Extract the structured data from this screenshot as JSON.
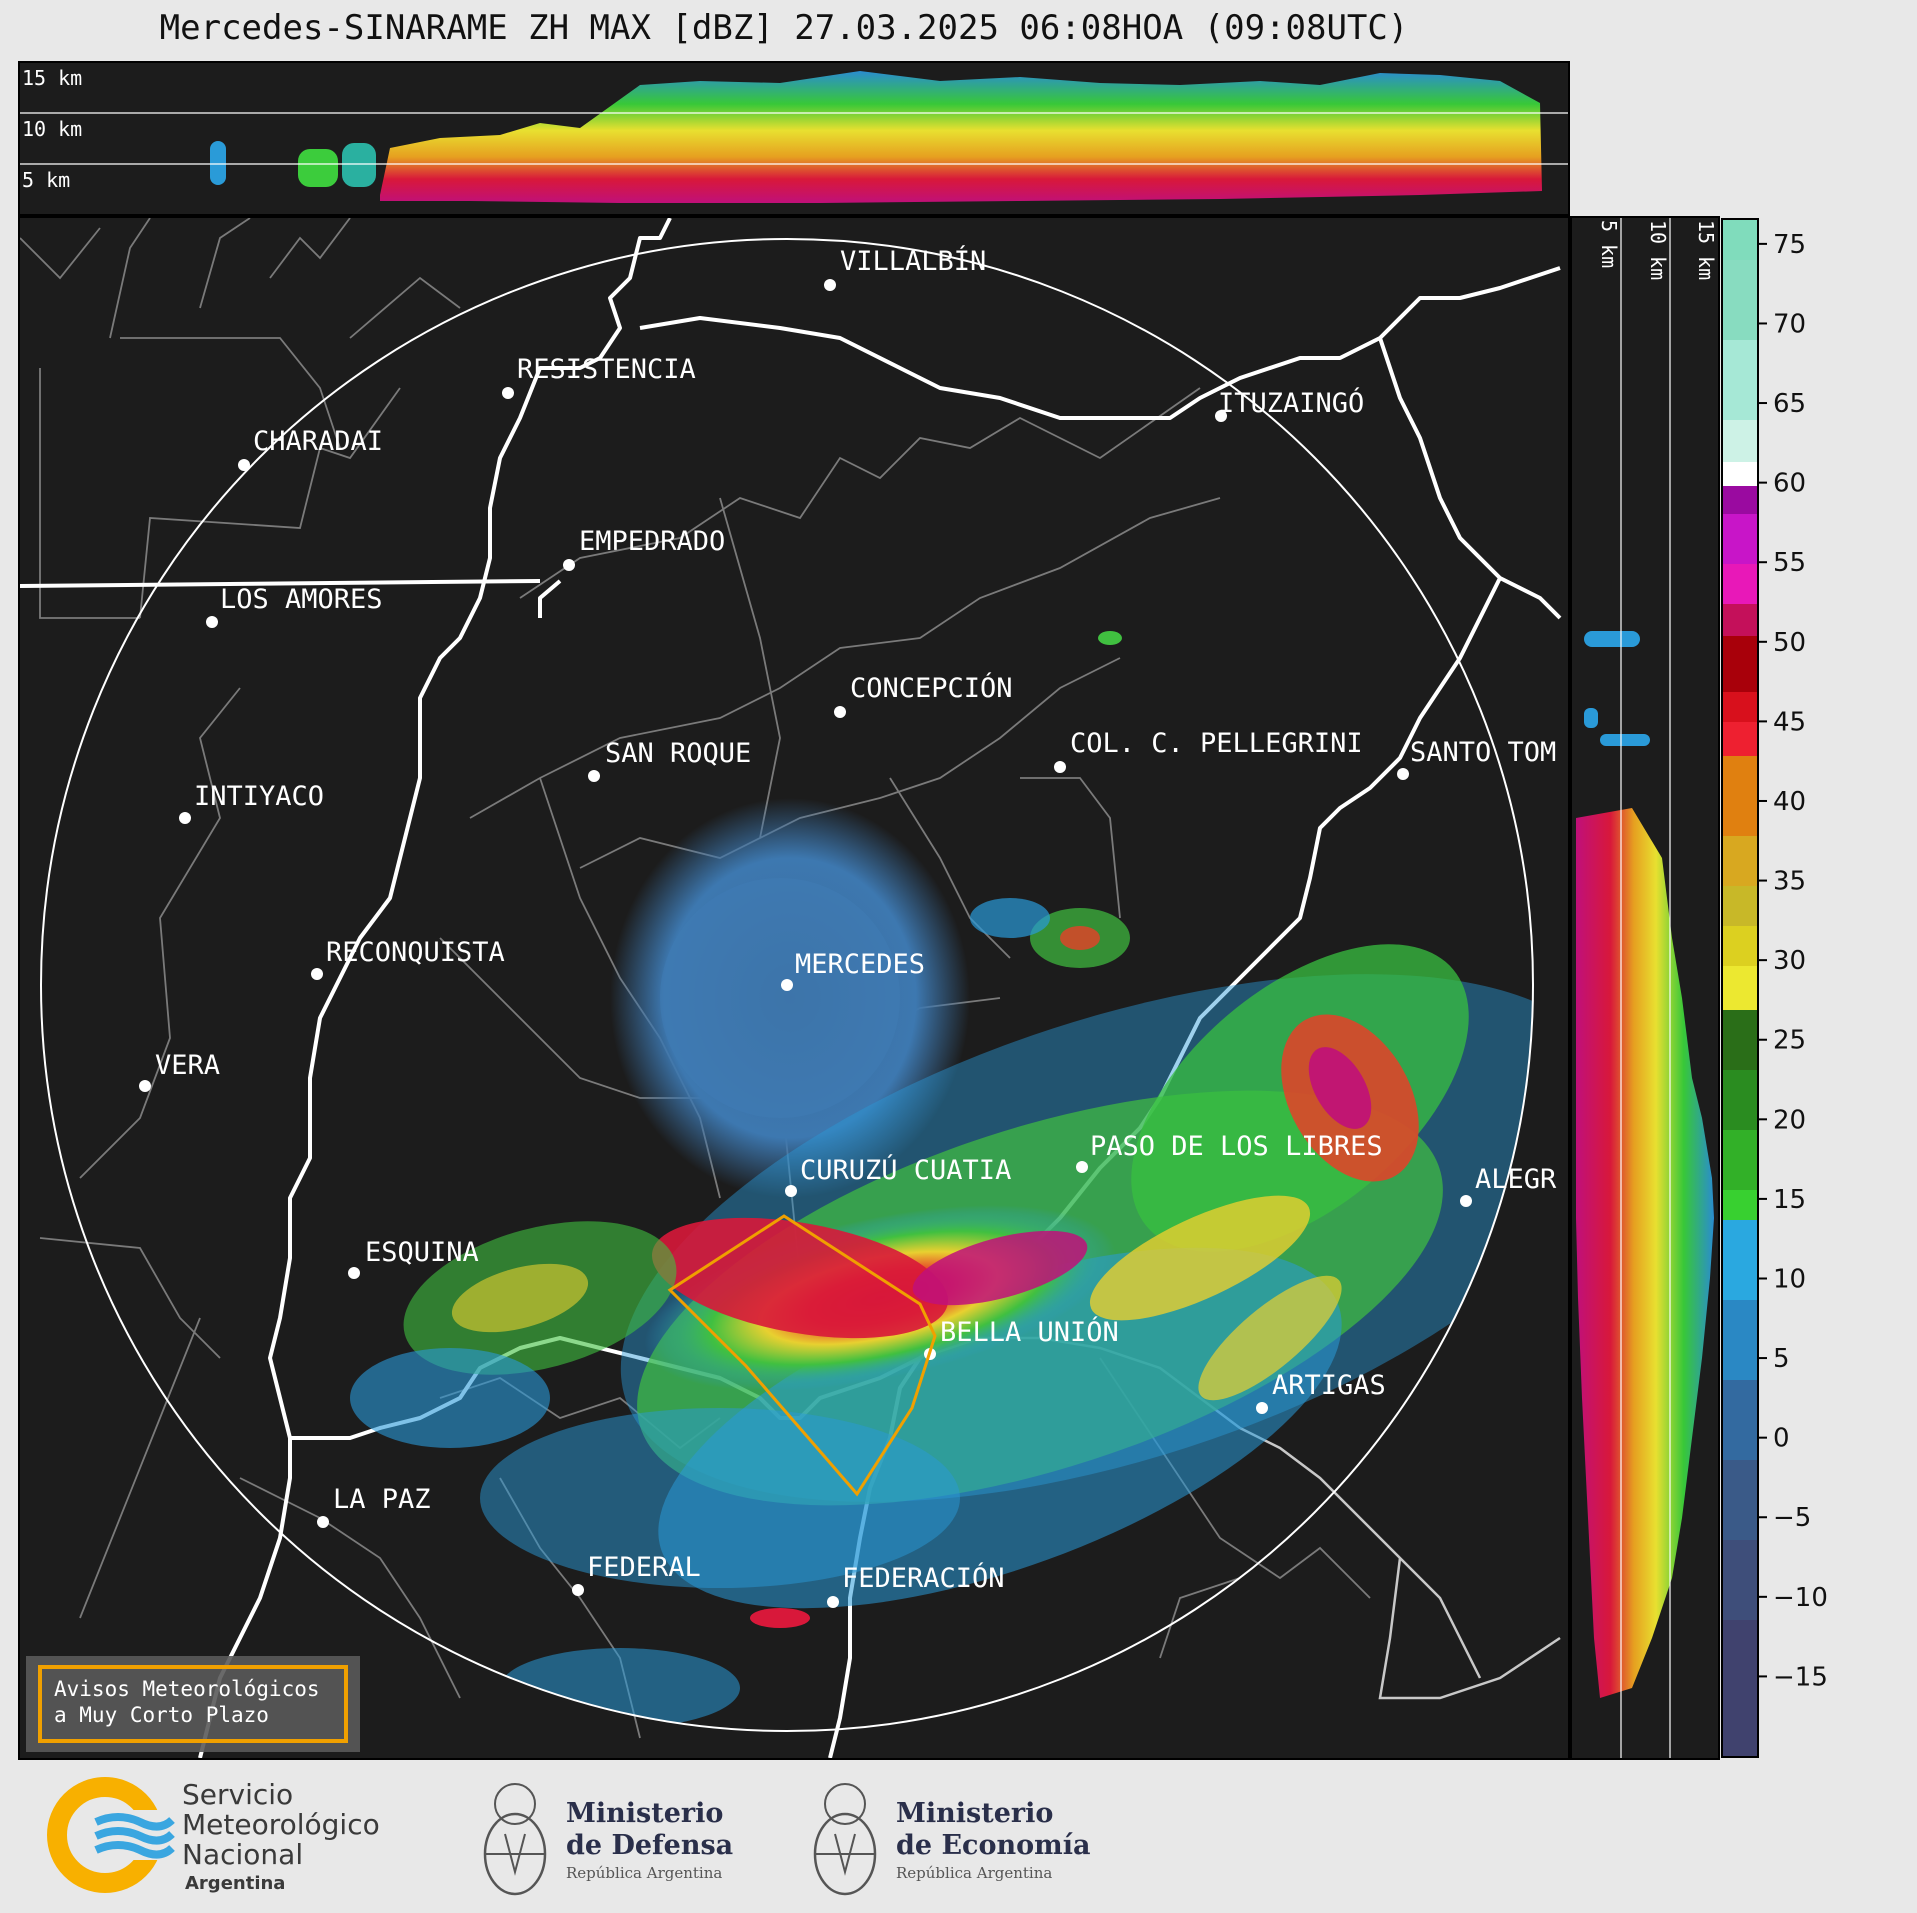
{
  "title": "Mercedes-SINARAME ZH MAX [dBZ] 27.03.2025 06:08HOA (09:08UTC)",
  "top_panel": {
    "height_labels": [
      "15 km",
      "10 km",
      "5 km"
    ]
  },
  "side_panel": {
    "height_labels": [
      "5 km",
      "10 km",
      "15 km"
    ]
  },
  "cities": [
    {
      "name": "VILLALBÍN"
    },
    {
      "name": "RESISTENCIA"
    },
    {
      "name": "CHARADAI"
    },
    {
      "name": "ITUZAINGÓ"
    },
    {
      "name": "EMPEDRADO"
    },
    {
      "name": "LOS AMORES"
    },
    {
      "name": "CONCEPCIÓN"
    },
    {
      "name": "SAN ROQUE"
    },
    {
      "name": "COL. C. PELLEGRINI"
    },
    {
      "name": "SANTO TOM"
    },
    {
      "name": "INTIYACO"
    },
    {
      "name": "RECONQUISTA"
    },
    {
      "name": "MERCEDES"
    },
    {
      "name": "VERA"
    },
    {
      "name": "PASO DE LOS LIBRES"
    },
    {
      "name": "CURUZÚ CUATIA"
    },
    {
      "name": "ALEGR"
    },
    {
      "name": "ESQUINA"
    },
    {
      "name": "BELLA UNIÓN"
    },
    {
      "name": "ARTIGAS"
    },
    {
      "name": "LA PAZ"
    },
    {
      "name": "FEDERAL"
    },
    {
      "name": "FEDERACIÓN"
    }
  ],
  "warning_box": {
    "line1": "Avisos Meteorológicos",
    "line2": "a Muy Corto Plazo"
  },
  "colorbar": {
    "ticks": [
      "75",
      "70",
      "65",
      "60",
      "55",
      "50",
      "45",
      "40",
      "35",
      "30",
      "25",
      "20",
      "15",
      "10",
      "5",
      "0",
      "−5",
      "−10",
      "−15"
    ],
    "min": -20,
    "max": 76.5
  },
  "logos": {
    "smn": {
      "line1": "Servicio",
      "line2": "Meteorológico",
      "line3": "Nacional",
      "line4": "Argentina"
    },
    "defensa": {
      "line1": "Ministerio",
      "line2": "de Defensa",
      "line3": "República Argentina"
    },
    "economia": {
      "line1": "Ministerio",
      "line2": "de Economía",
      "line3": "República Argentina"
    }
  }
}
